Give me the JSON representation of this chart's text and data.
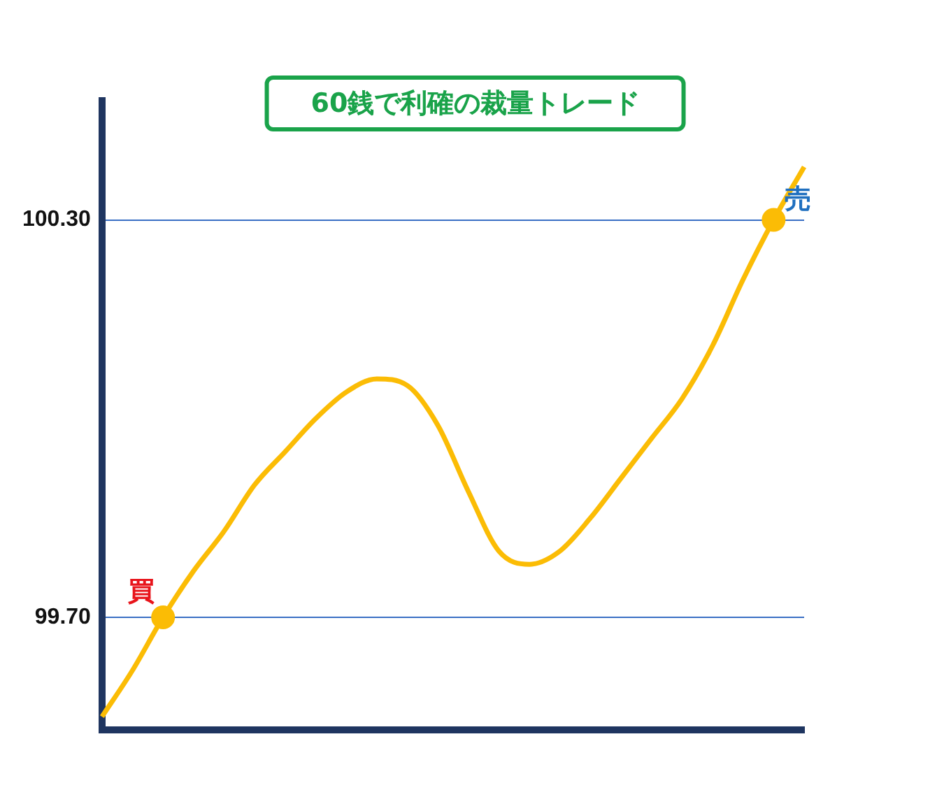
{
  "chart_data": {
    "type": "line",
    "title": "60銭で利確の裁量トレード",
    "categories": [
      null,
      null,
      null,
      null,
      null,
      null,
      null,
      null,
      null,
      null,
      null,
      null,
      null,
      null,
      null,
      null,
      null,
      null,
      null,
      null,
      null,
      null,
      null,
      null
    ],
    "series": [
      {
        "color": "#fbbc05",
        "marker": "none",
        "values": [
          99.55,
          99.62,
          99.7,
          99.77,
          99.83,
          99.9,
          99.95,
          100.0,
          100.04,
          100.06,
          100.05,
          99.99,
          99.89,
          99.8,
          99.78,
          99.8,
          99.85,
          99.91,
          99.97,
          100.03,
          100.11,
          100.21,
          100.3,
          100.38
        ]
      },
      {
        "type": "scatter",
        "color": "#fbbc05",
        "marker": "circle",
        "values": [
          null,
          null,
          99.7,
          null,
          null,
          null,
          null,
          null,
          null,
          null,
          null,
          null,
          null,
          null,
          null,
          null,
          null,
          null,
          null,
          null,
          null,
          null,
          100.3,
          null
        ]
      }
    ],
    "ylim": [
      99.53,
      100.48
    ],
    "yticks": [
      {
        "value": 99.7,
        "label": "99.70"
      },
      {
        "value": 100.3,
        "label": "100.30"
      }
    ],
    "tick_labels": "y",
    "grid": "y",
    "legend": false,
    "annotations": [
      "買",
      "売"
    ]
  }
}
